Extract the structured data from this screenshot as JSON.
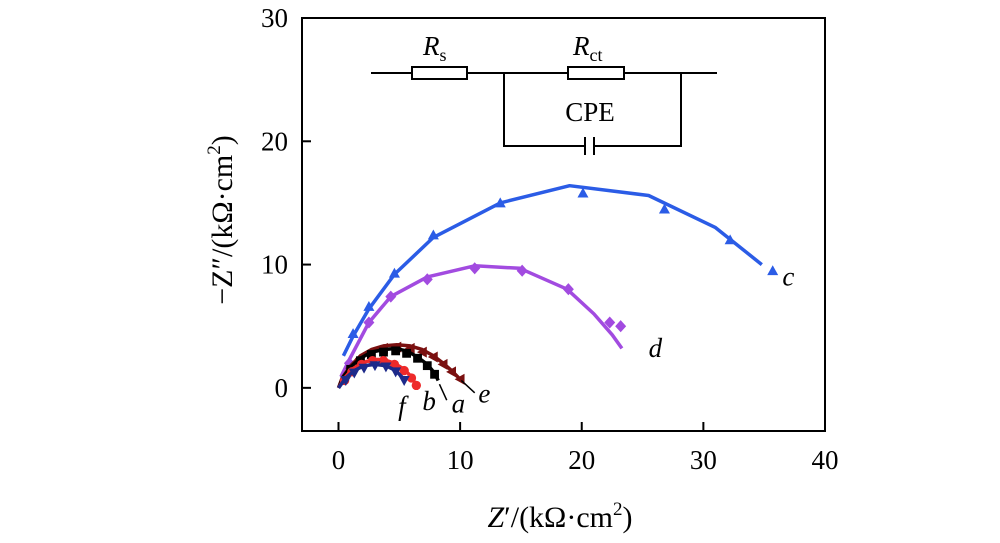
{
  "chart_data": {
    "type": "scatter",
    "xlabel": "Z′/(kΩ·cm²)",
    "ylabel": "−Z″/(kΩ·cm²)",
    "xlabel_parts": {
      "main": "Z",
      "prime": "′",
      "unit": "/(kΩ·cm",
      "sup": "2",
      "close": ")"
    },
    "ylabel_parts": {
      "main": "−Z",
      "prime": "″",
      "unit": "/(kΩ·cm",
      "sup": "2",
      "close": ")"
    },
    "xlim": [
      -3,
      40
    ],
    "ylim": [
      -3.5,
      30
    ],
    "xticks": [
      0,
      10,
      20,
      30,
      40
    ],
    "yticks": [
      0,
      10,
      20,
      30
    ],
    "xtick_labels": [
      "0",
      "10",
      "20",
      "30",
      "40"
    ],
    "ytick_labels": [
      "0",
      "10",
      "20",
      "30"
    ],
    "grid": false,
    "inset_circuit": {
      "Rs": {
        "main": "R",
        "sub": "s"
      },
      "Rct": {
        "main": "R",
        "sub": "ct"
      },
      "cpe": "CPE"
    },
    "series": [
      {
        "name": "c",
        "label": "c",
        "color": "#2b5ce6",
        "marker": "triangle",
        "labelXY": [
          36.5,
          8.3
        ],
        "points": [
          [
            1.2,
            4.4
          ],
          [
            2.5,
            6.6
          ],
          [
            4.6,
            9.3
          ],
          [
            7.8,
            12.4
          ],
          [
            13.3,
            15.0
          ],
          [
            20.1,
            15.8
          ],
          [
            26.8,
            14.5
          ],
          [
            32.2,
            12.0
          ],
          [
            35.7,
            9.5
          ]
        ],
        "fit": [
          [
            0.4,
            2.6
          ],
          [
            1.2,
            4.2
          ],
          [
            2.5,
            6.4
          ],
          [
            4.6,
            9.2
          ],
          [
            7.8,
            12.2
          ],
          [
            13.3,
            15.0
          ],
          [
            19.0,
            16.4
          ],
          [
            25.5,
            15.6
          ],
          [
            31.0,
            13.0
          ],
          [
            34.8,
            10.0
          ]
        ]
      },
      {
        "name": "d",
        "label": "d",
        "color": "#a24be0",
        "marker": "diamond",
        "labelXY": [
          25.5,
          2.5
        ],
        "points": [
          [
            0.9,
            2.0
          ],
          [
            2.5,
            5.3
          ],
          [
            4.3,
            7.4
          ],
          [
            7.3,
            8.8
          ],
          [
            11.2,
            9.7
          ],
          [
            15.1,
            9.5
          ],
          [
            18.9,
            8.0
          ],
          [
            22.3,
            5.3
          ],
          [
            23.2,
            5.0
          ]
        ],
        "fit": [
          [
            0.2,
            0.9
          ],
          [
            0.9,
            2.3
          ],
          [
            2.5,
            5.3
          ],
          [
            4.3,
            7.4
          ],
          [
            7.3,
            9.0
          ],
          [
            11.2,
            9.9
          ],
          [
            14.9,
            9.7
          ],
          [
            18.8,
            8.0
          ],
          [
            21.0,
            6.0
          ],
          [
            22.5,
            4.3
          ],
          [
            23.3,
            3.2
          ]
        ]
      },
      {
        "name": "e",
        "label": "e",
        "color": "#7a1010",
        "marker": "triangle-left",
        "labelXY": [
          11.5,
          -1.2
        ],
        "points": [
          [
            1.0,
            1.6
          ],
          [
            1.8,
            2.4
          ],
          [
            2.7,
            2.9
          ],
          [
            3.7,
            3.2
          ],
          [
            4.8,
            3.3
          ],
          [
            5.9,
            3.2
          ],
          [
            6.9,
            2.9
          ],
          [
            7.8,
            2.5
          ],
          [
            8.6,
            1.9
          ],
          [
            9.3,
            1.3
          ],
          [
            10.0,
            0.7
          ]
        ],
        "fit": [
          [
            0,
            0
          ],
          [
            0.3,
            0.8
          ],
          [
            1.0,
            1.8
          ],
          [
            1.8,
            2.6
          ],
          [
            2.7,
            3.1
          ],
          [
            3.7,
            3.4
          ],
          [
            4.8,
            3.5
          ],
          [
            5.9,
            3.4
          ],
          [
            6.9,
            3.1
          ],
          [
            7.8,
            2.6
          ],
          [
            8.6,
            2.0
          ],
          [
            9.3,
            1.4
          ],
          [
            10.0,
            0.7
          ]
        ]
      },
      {
        "name": "a",
        "label": "a",
        "color": "#000000",
        "marker": "square",
        "labelXY": [
          9.3,
          -2.0
        ],
        "points": [
          [
            1.0,
            1.5
          ],
          [
            1.8,
            2.2
          ],
          [
            2.7,
            2.7
          ],
          [
            3.7,
            2.9
          ],
          [
            4.7,
            3.0
          ],
          [
            5.6,
            2.8
          ],
          [
            6.5,
            2.4
          ],
          [
            7.3,
            1.8
          ],
          [
            7.9,
            1.1
          ]
        ],
        "fit": [
          [
            0,
            0
          ],
          [
            0.4,
            0.9
          ],
          [
            1.0,
            1.7
          ],
          [
            1.8,
            2.4
          ],
          [
            2.7,
            2.9
          ],
          [
            3.7,
            3.1
          ],
          [
            4.7,
            3.2
          ],
          [
            5.6,
            3.0
          ],
          [
            6.5,
            2.5
          ],
          [
            7.3,
            1.9
          ],
          [
            7.9,
            1.2
          ],
          [
            8.2,
            0.6
          ]
        ]
      },
      {
        "name": "b",
        "label": "b",
        "color": "#ee2a2a",
        "marker": "circle",
        "labelXY": [
          6.9,
          -1.8
        ],
        "points": [
          [
            0.5,
            0.6
          ],
          [
            1.1,
            1.3
          ],
          [
            1.9,
            1.9
          ],
          [
            2.8,
            2.2
          ],
          [
            3.7,
            2.2
          ],
          [
            4.6,
            1.9
          ],
          [
            5.4,
            1.4
          ],
          [
            6.0,
            0.8
          ],
          [
            6.4,
            0.2
          ]
        ],
        "fit": [
          [
            0,
            0
          ],
          [
            0.5,
            0.8
          ],
          [
            1.1,
            1.5
          ],
          [
            1.9,
            2.0
          ],
          [
            2.8,
            2.3
          ],
          [
            3.7,
            2.3
          ],
          [
            4.6,
            2.0
          ],
          [
            5.4,
            1.5
          ],
          [
            6.0,
            0.9
          ],
          [
            6.4,
            0.2
          ]
        ]
      },
      {
        "name": "f",
        "label": "f",
        "color": "#1d2a8a",
        "marker": "triangle-down",
        "labelXY": [
          4.9,
          -2.2
        ],
        "points": [
          [
            0.6,
            0.6
          ],
          [
            1.3,
            1.2
          ],
          [
            2.1,
            1.6
          ],
          [
            3.0,
            1.8
          ],
          [
            3.9,
            1.7
          ],
          [
            4.7,
            1.3
          ],
          [
            5.4,
            0.6
          ]
        ],
        "fit": [
          [
            0,
            0
          ],
          [
            0.6,
            0.8
          ],
          [
            1.3,
            1.4
          ],
          [
            2.1,
            1.8
          ],
          [
            3.0,
            1.9
          ],
          [
            3.9,
            1.8
          ],
          [
            4.7,
            1.4
          ],
          [
            5.4,
            0.7
          ]
        ]
      }
    ]
  }
}
